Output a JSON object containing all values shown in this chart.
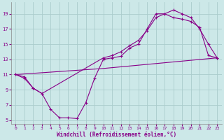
{
  "xlabel": "Windchill (Refroidissement éolien,°C)",
  "bg_color": "#cce8e8",
  "grid_color": "#aacccc",
  "line_color": "#880088",
  "xlim": [
    -0.5,
    23.5
  ],
  "ylim": [
    4.5,
    20.5
  ],
  "xticks": [
    0,
    1,
    2,
    3,
    4,
    5,
    6,
    7,
    8,
    9,
    10,
    11,
    12,
    13,
    14,
    15,
    16,
    17,
    18,
    19,
    20,
    21,
    22,
    23
  ],
  "yticks": [
    5,
    7,
    9,
    11,
    13,
    15,
    17,
    19
  ],
  "line1_x": [
    0,
    1,
    2,
    3,
    4,
    5,
    6,
    7,
    8,
    9,
    10,
    11,
    12,
    13,
    14,
    15,
    16,
    17,
    18,
    19,
    20,
    21,
    22,
    23
  ],
  "line1_y": [
    11.0,
    10.7,
    9.2,
    8.5,
    6.4,
    5.3,
    5.3,
    5.2,
    7.3,
    10.5,
    13.0,
    13.2,
    13.4,
    14.5,
    15.0,
    17.0,
    19.0,
    19.0,
    19.5,
    19.0,
    18.5,
    17.0,
    15.0,
    13.2
  ],
  "line2_x": [
    0,
    1,
    2,
    3,
    10,
    11,
    12,
    13,
    14,
    15,
    16,
    17,
    18,
    19,
    20,
    21,
    22,
    23
  ],
  "line2_y": [
    11.0,
    10.5,
    9.2,
    8.5,
    13.2,
    13.5,
    14.0,
    14.8,
    15.5,
    16.8,
    18.5,
    19.0,
    18.5,
    18.3,
    18.0,
    17.2,
    13.5,
    13.2
  ],
  "line3_x": [
    0,
    10,
    23
  ],
  "line3_y": [
    11.0,
    11.8,
    13.2
  ]
}
